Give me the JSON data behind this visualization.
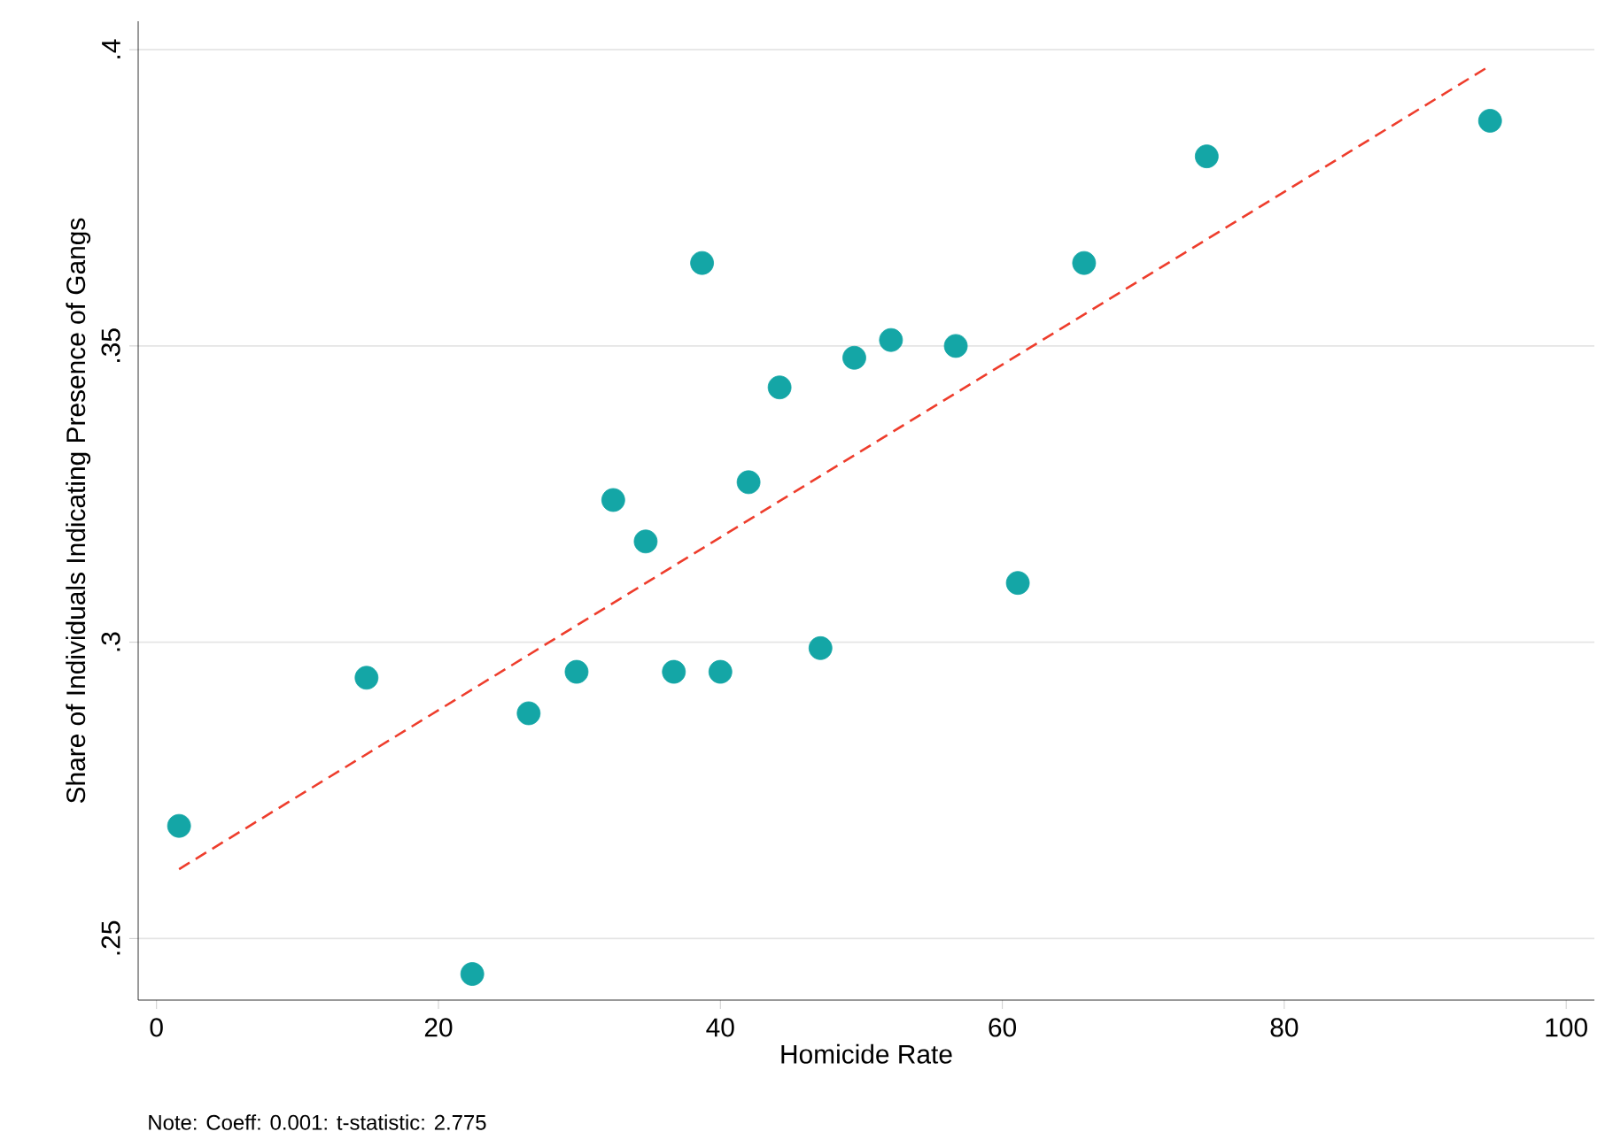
{
  "chart_data": {
    "type": "scatter",
    "xlabel": "Homicide Rate",
    "ylabel": "Share of Individuals Indicating Presence of Gangs",
    "annotations": [
      "Note: Coeff: 0.001: t-statistic: 2.775"
    ],
    "xlim": [
      -1.3,
      102
    ],
    "ylim": [
      0.2396,
      0.4048
    ],
    "xticks": [
      0,
      20,
      40,
      60,
      80,
      100
    ],
    "yticks": [
      {
        "value": 0.25,
        "label": ".25"
      },
      {
        "value": 0.3,
        "label": ".3"
      },
      {
        "value": 0.35,
        "label": ".35"
      },
      {
        "value": 0.4,
        "label": ".4"
      }
    ],
    "grid": "y",
    "series": [
      {
        "color": "#14a6a6",
        "marker": "circle",
        "x": [
          1.6,
          14.9,
          22.4,
          26.4,
          29.8,
          32.4,
          34.7,
          36.7,
          38.7,
          40.0,
          42.0,
          44.2,
          47.1,
          49.5,
          52.1,
          56.7,
          61.1,
          65.8,
          74.5,
          94.6
        ],
        "values": [
          0.269,
          0.294,
          0.244,
          0.288,
          0.295,
          0.324,
          0.317,
          0.295,
          0.364,
          0.295,
          0.327,
          0.343,
          0.299,
          0.348,
          0.351,
          0.35,
          0.31,
          0.364,
          0.382,
          0.388
        ]
      },
      {
        "type": "line",
        "color": "#ee3d2c",
        "line_style": "dashed",
        "marker": "none",
        "x": [
          1.6,
          94.6
        ],
        "values": [
          0.2617,
          0.3973
        ]
      }
    ]
  }
}
